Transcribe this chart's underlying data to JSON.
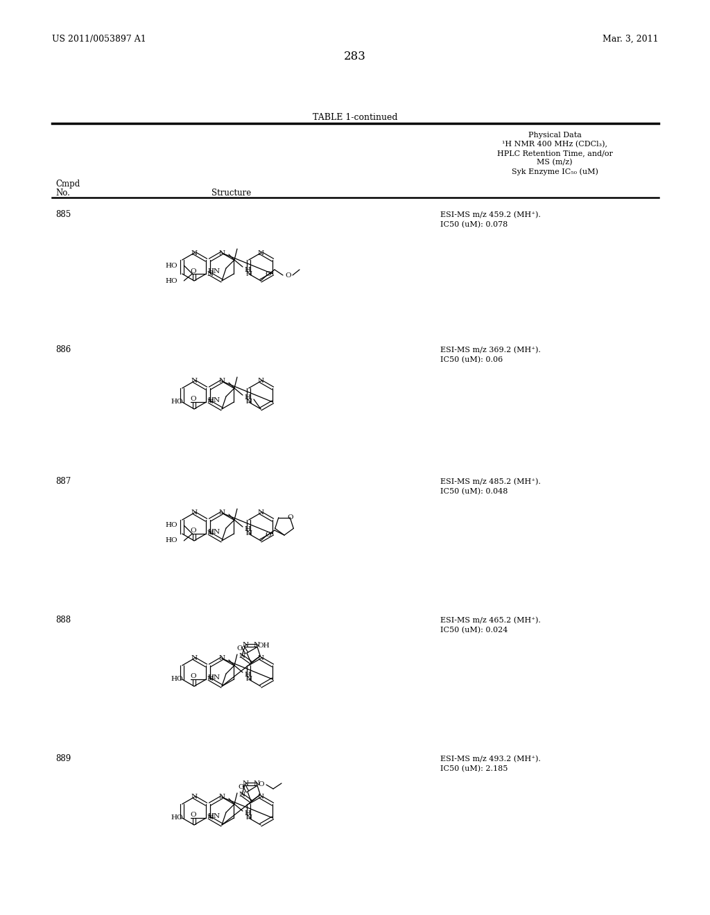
{
  "page_number": "283",
  "patent_number": "US 2011/0053897 A1",
  "patent_date": "Mar. 3, 2011",
  "table_title": "TABLE 1-continued",
  "col_header_physical": "Physical Data",
  "col_header_nmr": "¹H NMR 400 MHz (CDCl₃),",
  "col_header_hplc": "HPLC Retention Time, and/or",
  "col_header_ms": "MS (m/z)",
  "col_header_syk": "Syk Enzyme IC₅₀ (uM)",
  "col_cmpd": "Cmpd",
  "col_no": "No.",
  "col_structure": "Structure",
  "compounds": [
    {
      "id": "885",
      "phys1": "ESI-MS m/z 459.2 (MH⁺).",
      "phys2": "IC50 (uM): 0.078"
    },
    {
      "id": "886",
      "phys1": "ESI-MS m/z 369.2 (MH⁺).",
      "phys2": "IC50 (uM): 0.06"
    },
    {
      "id": "887",
      "phys1": "ESI-MS m/z 485.2 (MH⁺).",
      "phys2": "IC50 (uM): 0.048"
    },
    {
      "id": "888",
      "phys1": "ESI-MS m/z 465.2 (MH⁺).",
      "phys2": "IC50 (uM): 0.024"
    },
    {
      "id": "889",
      "phys1": "ESI-MS m/z 493.2 (MH⁺).",
      "phys2": "IC50 (uM): 2.185"
    }
  ],
  "bg_color": "#ffffff",
  "text_color": "#000000"
}
